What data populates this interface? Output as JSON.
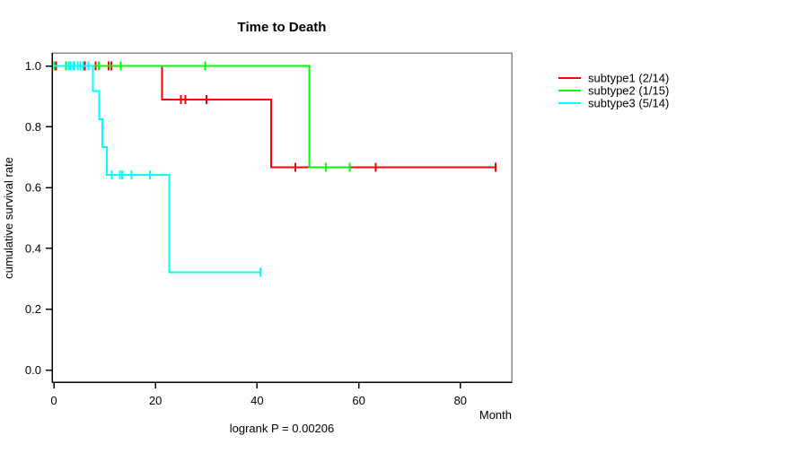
{
  "chart_data": {
    "type": "line",
    "subtype": "kaplan-meier-step",
    "title": "Time to Death",
    "xlabel": "Month",
    "ylabel": "cumulative survival rate",
    "footnote": "logrank P = 0.00206",
    "x_ticks": [
      0,
      20,
      40,
      60,
      80
    ],
    "y_ticks": [
      0.0,
      0.2,
      0.4,
      0.6,
      0.8,
      1.0
    ],
    "xlim": [
      0,
      90
    ],
    "ylim": [
      0,
      1
    ],
    "grid": false,
    "legend_position": "right-outside",
    "axis_color": "#000000",
    "box_color": "#878787",
    "series": [
      {
        "name": "subtype1 (2/14)",
        "key": "subtype1",
        "events": "2/14",
        "color": "#ff0000",
        "steps": [
          [
            0,
            1.0
          ],
          [
            21.3,
            1.0
          ],
          [
            21.3,
            0.889
          ],
          [
            42.8,
            0.889
          ],
          [
            42.8,
            0.667
          ],
          [
            86.9,
            0.667
          ]
        ],
        "censors": [
          [
            0.4,
            1.0
          ],
          [
            6.1,
            1.0
          ],
          [
            8.2,
            1.0
          ],
          [
            10.8,
            1.0
          ],
          [
            11.3,
            1.0
          ],
          [
            25.0,
            0.889
          ],
          [
            25.9,
            0.889
          ],
          [
            30.0,
            0.889
          ],
          [
            47.5,
            0.667
          ],
          [
            63.3,
            0.667
          ],
          [
            86.9,
            0.667
          ]
        ]
      },
      {
        "name": "subtype2 (1/15)",
        "key": "subtype2",
        "events": "1/15",
        "color": "#00ff00",
        "steps": [
          [
            0,
            1.0
          ],
          [
            50.3,
            1.0
          ],
          [
            50.3,
            0.667
          ],
          [
            58.2,
            0.667
          ]
        ],
        "censors": [
          [
            0.1,
            1.0
          ],
          [
            2.4,
            1.0
          ],
          [
            8.8,
            1.0
          ],
          [
            13.2,
            1.0
          ],
          [
            29.8,
            1.0
          ],
          [
            53.5,
            0.667
          ],
          [
            58.2,
            0.667
          ]
        ]
      },
      {
        "name": "subtype3 (5/14)",
        "key": "subtype3",
        "events": "5/14",
        "color": "#00ffff",
        "steps": [
          [
            0,
            1.0
          ],
          [
            7.7,
            1.0
          ],
          [
            7.7,
            0.917
          ],
          [
            8.9,
            0.917
          ],
          [
            8.9,
            0.825
          ],
          [
            9.5,
            0.825
          ],
          [
            9.5,
            0.733
          ],
          [
            10.4,
            0.733
          ],
          [
            10.4,
            0.642
          ],
          [
            22.7,
            0.642
          ],
          [
            22.7,
            0.321
          ],
          [
            40.6,
            0.321
          ]
        ],
        "censors": [
          [
            2.9,
            1.0
          ],
          [
            3.3,
            1.0
          ],
          [
            3.8,
            1.0
          ],
          [
            4.1,
            1.0
          ],
          [
            4.7,
            1.0
          ],
          [
            5.2,
            1.0
          ],
          [
            5.7,
            1.0
          ],
          [
            6.8,
            1.0
          ],
          [
            11.4,
            0.642
          ],
          [
            13.0,
            0.642
          ],
          [
            13.4,
            0.642
          ],
          [
            15.3,
            0.642
          ],
          [
            18.9,
            0.642
          ],
          [
            40.6,
            0.321
          ]
        ]
      }
    ]
  }
}
